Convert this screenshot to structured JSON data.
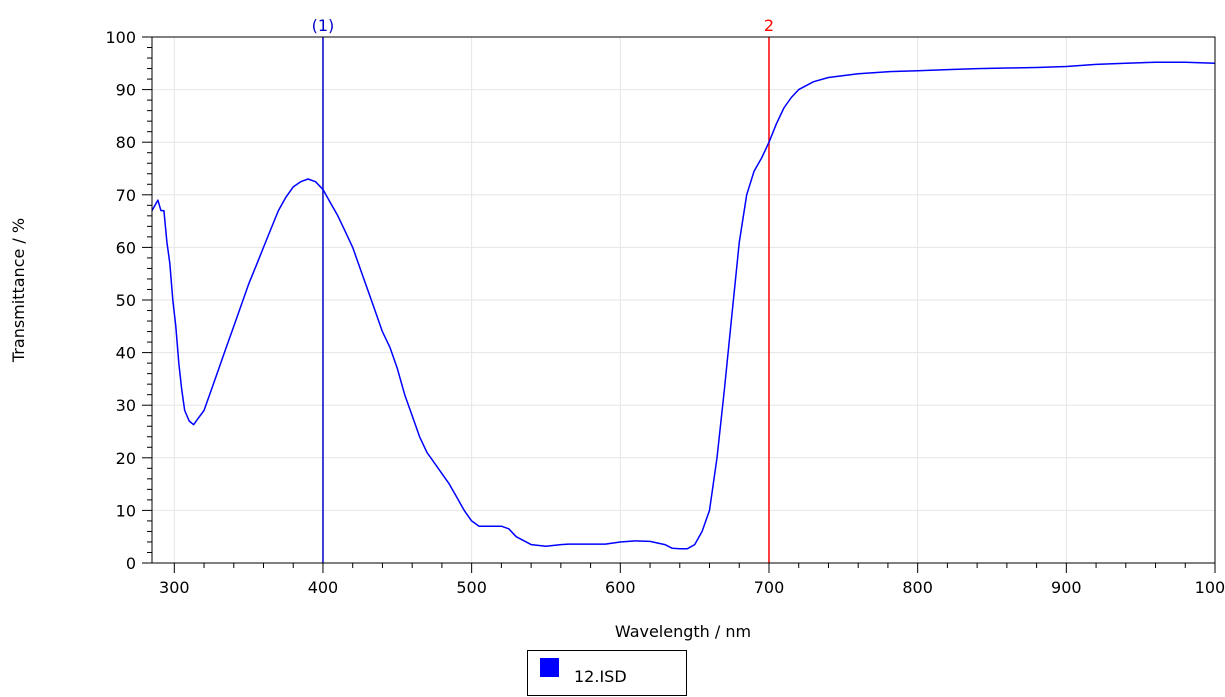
{
  "chart_data": {
    "type": "line",
    "title": "",
    "xlabel": "Wavelength / nm",
    "ylabel": "Transmittance / %",
    "xlim": [
      285,
      1000
    ],
    "ylim": [
      0,
      100
    ],
    "x_ticks": [
      300,
      400,
      500,
      600,
      700,
      800,
      900,
      1000
    ],
    "y_ticks": [
      0,
      10,
      20,
      30,
      40,
      50,
      60,
      70,
      80,
      90,
      100
    ],
    "grid": true,
    "legend_position": "bottom-center",
    "markers": [
      {
        "label": "(1)",
        "x": 400,
        "color": "#0000cc"
      },
      {
        "label": "2",
        "x": 700,
        "color": "#ff0000"
      }
    ],
    "series": [
      {
        "name": "12.ISD",
        "color": "#0000ff",
        "x": [
          285,
          287,
          289,
          291,
          293,
          295,
          297,
          299,
          301,
          303,
          305,
          307,
          310,
          313,
          316,
          320,
          325,
          330,
          335,
          340,
          345,
          350,
          355,
          360,
          365,
          370,
          375,
          380,
          385,
          390,
          395,
          400,
          405,
          410,
          415,
          420,
          425,
          430,
          435,
          440,
          445,
          450,
          455,
          460,
          465,
          470,
          475,
          480,
          485,
          490,
          495,
          500,
          505,
          510,
          515,
          520,
          525,
          530,
          540,
          550,
          560,
          565,
          570,
          580,
          590,
          600,
          610,
          620,
          630,
          635,
          640,
          645,
          650,
          655,
          660,
          665,
          670,
          675,
          680,
          685,
          690,
          695,
          700,
          705,
          710,
          715,
          720,
          730,
          740,
          760,
          780,
          800,
          820,
          840,
          860,
          880,
          900,
          920,
          940,
          960,
          980,
          1000
        ],
        "y": [
          67,
          68,
          69,
          67,
          67,
          61,
          57,
          50,
          45,
          38,
          33,
          29,
          27,
          26.3,
          27.5,
          29,
          33,
          37,
          41,
          45,
          49,
          53,
          56.5,
          60,
          63.5,
          67,
          69.5,
          71.5,
          72.5,
          73,
          72.5,
          71,
          68.5,
          66,
          63,
          60,
          56,
          52,
          48,
          44,
          41,
          37,
          32,
          28,
          24,
          21,
          19,
          17,
          15,
          12.5,
          10,
          8,
          7,
          7,
          7,
          7,
          6.5,
          5,
          3.5,
          3.2,
          3.5,
          3.6,
          3.6,
          3.6,
          3.6,
          4,
          4.2,
          4.1,
          3.5,
          2.8,
          2.7,
          2.7,
          3.5,
          6,
          10,
          20,
          33,
          47,
          61,
          70,
          74.5,
          77,
          80,
          83.5,
          86.5,
          88.5,
          90,
          91.5,
          92.3,
          93,
          93.4,
          93.6,
          93.8,
          94,
          94.1,
          94.2,
          94.4,
          94.8,
          95,
          95.2,
          95.2,
          95
        ]
      }
    ]
  }
}
